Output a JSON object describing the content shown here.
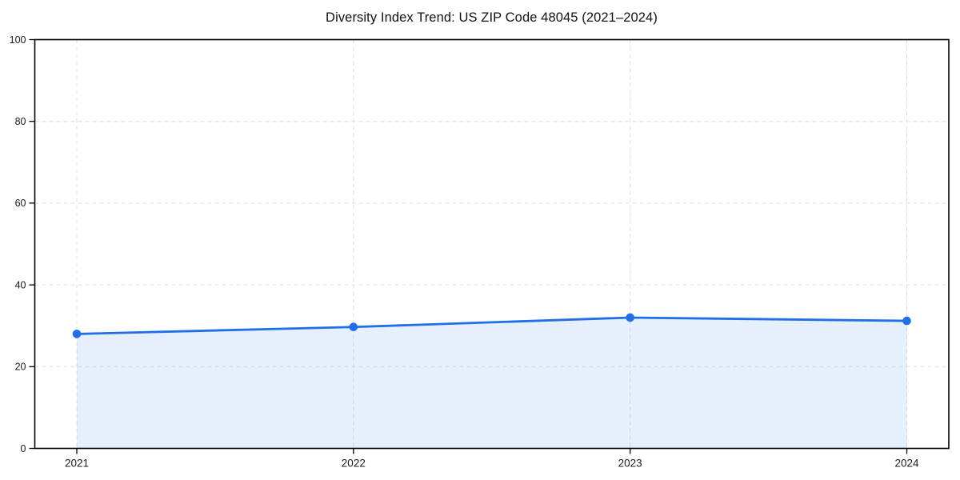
{
  "chart_data": {
    "type": "area",
    "title": "Diversity Index Trend: US ZIP Code 48045 (2021–2024)",
    "categories": [
      "2021",
      "2022",
      "2023",
      "2024"
    ],
    "series": [
      {
        "name": "Diversity Index",
        "values": [
          28.0,
          29.7,
          32.0,
          31.2
        ]
      }
    ],
    "xlabel": "",
    "ylabel": "",
    "ylim": [
      0,
      100
    ],
    "yticks": [
      0,
      20,
      40,
      60,
      80,
      100
    ],
    "grid": true,
    "grid_style": "dashed",
    "legend": false,
    "colors": {
      "line": "#1f6fe8",
      "fill": "rgba(31,111,232,0.11)",
      "grid": "#dedede",
      "axis": "#000000",
      "text": "#1a1a1a",
      "background": "#ffffff"
    }
  }
}
